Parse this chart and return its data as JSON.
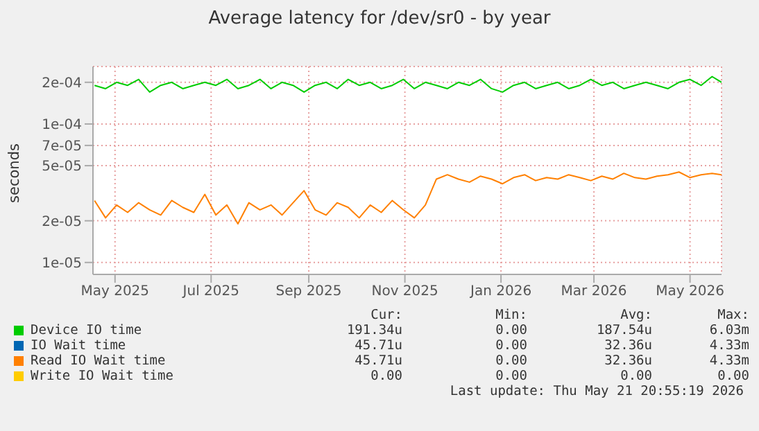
{
  "chart_data": {
    "type": "line",
    "title": "Average latency for /dev/sr0 - by year",
    "ylabel": "seconds",
    "x": [
      "2025-04-18",
      "2025-04-25",
      "2025-05-02",
      "2025-05-09",
      "2025-05-16",
      "2025-05-23",
      "2025-05-30",
      "2025-06-06",
      "2025-06-13",
      "2025-06-20",
      "2025-06-27",
      "2025-07-04",
      "2025-07-11",
      "2025-07-18",
      "2025-07-25",
      "2025-08-01",
      "2025-08-08",
      "2025-08-15",
      "2025-08-22",
      "2025-08-29",
      "2025-09-05",
      "2025-09-12",
      "2025-09-19",
      "2025-09-26",
      "2025-10-03",
      "2025-10-10",
      "2025-10-17",
      "2025-10-24",
      "2025-10-31",
      "2025-11-07",
      "2025-11-14",
      "2025-11-21",
      "2025-11-28",
      "2025-12-05",
      "2025-12-12",
      "2025-12-19",
      "2025-12-26",
      "2026-01-02",
      "2026-01-09",
      "2026-01-16",
      "2026-01-23",
      "2026-01-30",
      "2026-02-06",
      "2026-02-13",
      "2026-02-20",
      "2026-02-27",
      "2026-03-06",
      "2026-03-13",
      "2026-03-20",
      "2026-03-27",
      "2026-04-03",
      "2026-04-10",
      "2026-04-17",
      "2026-04-24",
      "2026-05-01",
      "2026-05-08",
      "2026-05-15",
      "2026-05-21"
    ],
    "series": [
      {
        "name": "Device IO time",
        "color": "#00cc00",
        "values": [
          0.00019,
          0.00018,
          0.0002,
          0.00019,
          0.00021,
          0.00017,
          0.00019,
          0.0002,
          0.00018,
          0.00019,
          0.0002,
          0.00019,
          0.00021,
          0.00018,
          0.00019,
          0.00021,
          0.00018,
          0.0002,
          0.00019,
          0.00017,
          0.00019,
          0.0002,
          0.00018,
          0.00021,
          0.00019,
          0.0002,
          0.00018,
          0.00019,
          0.00021,
          0.00018,
          0.0002,
          0.00019,
          0.00018,
          0.0002,
          0.00019,
          0.00021,
          0.00018,
          0.00017,
          0.00019,
          0.0002,
          0.00018,
          0.00019,
          0.0002,
          0.00018,
          0.00019,
          0.00021,
          0.00019,
          0.0002,
          0.00018,
          0.00019,
          0.0002,
          0.00019,
          0.00018,
          0.0002,
          0.00021,
          0.00019,
          0.00022,
          0.0002
        ]
      },
      {
        "name": "IO Wait time",
        "color": "#0066b3",
        "values": [
          null,
          null,
          null,
          null,
          null,
          null,
          null,
          null,
          null,
          null,
          null,
          null,
          null,
          null,
          null,
          null,
          null,
          null,
          null,
          null,
          null,
          null,
          null,
          null,
          null,
          null,
          null,
          null,
          null,
          null,
          null,
          null,
          null,
          null,
          null,
          null,
          null,
          null,
          null,
          null,
          null,
          null,
          null,
          null,
          null,
          null,
          null,
          null,
          null,
          null,
          null,
          null,
          null,
          null,
          null,
          null,
          null,
          null
        ]
      },
      {
        "name": "Read IO Wait time",
        "color": "#ff8000",
        "values": [
          2.8e-05,
          2.1e-05,
          2.6e-05,
          2.3e-05,
          2.7e-05,
          2.4e-05,
          2.2e-05,
          2.8e-05,
          2.5e-05,
          2.3e-05,
          3.1e-05,
          2.2e-05,
          2.6e-05,
          1.9e-05,
          2.7e-05,
          2.4e-05,
          2.6e-05,
          2.2e-05,
          2.7e-05,
          3.3e-05,
          2.4e-05,
          2.2e-05,
          2.7e-05,
          2.5e-05,
          2.1e-05,
          2.6e-05,
          2.3e-05,
          2.8e-05,
          2.4e-05,
          2.1e-05,
          2.6e-05,
          4e-05,
          4.3e-05,
          4e-05,
          3.8e-05,
          4.2e-05,
          4e-05,
          3.7e-05,
          4.1e-05,
          4.3e-05,
          3.9e-05,
          4.1e-05,
          4e-05,
          4.3e-05,
          4.1e-05,
          3.9e-05,
          4.2e-05,
          4e-05,
          4.4e-05,
          4.1e-05,
          4e-05,
          4.2e-05,
          4.3e-05,
          4.5e-05,
          4.1e-05,
          4.3e-05,
          4.4e-05,
          4.3e-05
        ]
      },
      {
        "name": "Write IO Wait time",
        "color": "#ffcc00",
        "values": [
          null,
          null,
          null,
          null,
          null,
          null,
          null,
          null,
          null,
          null,
          null,
          null,
          null,
          null,
          null,
          null,
          null,
          null,
          null,
          null,
          null,
          null,
          null,
          null,
          null,
          null,
          null,
          null,
          null,
          null,
          null,
          null,
          null,
          null,
          null,
          null,
          null,
          null,
          null,
          null,
          null,
          null,
          null,
          null,
          null,
          null,
          null,
          null,
          null,
          null,
          null,
          null,
          null,
          null,
          null,
          null,
          null,
          null
        ]
      }
    ],
    "log": true,
    "xlim": [
      "2025-04-17",
      "2026-05-21"
    ],
    "xticks": [
      {
        "value": "2025-05-01",
        "label": "May 2025"
      },
      {
        "value": "2025-07-01",
        "label": "Jul 2025"
      },
      {
        "value": "2025-09-01",
        "label": "Sep 2025"
      },
      {
        "value": "2025-11-01",
        "label": "Nov 2025"
      },
      {
        "value": "2026-01-01",
        "label": "Jan 2026"
      },
      {
        "value": "2026-03-01",
        "label": "Mar 2026"
      },
      {
        "value": "2026-05-01",
        "label": "May 2026"
      }
    ],
    "ylim": [
      8.2e-06,
      0.00026
    ],
    "yticks": [
      {
        "value": 1e-05,
        "label": "1e-05"
      },
      {
        "value": 2e-05,
        "label": "2e-05"
      },
      {
        "value": 5e-05,
        "label": "5e-05"
      },
      {
        "value": 7e-05,
        "label": "7e-05"
      },
      {
        "value": 0.0001,
        "label": "1e-04"
      },
      {
        "value": 0.0002,
        "label": "2e-04"
      }
    ],
    "grid": true,
    "legend": "bottom",
    "marker": "none",
    "line_style": "solid",
    "annotations": [
      "Cur:",
      "Min:",
      "Avg:",
      "Max:",
      "191.34u",
      "0.00",
      "187.54u",
      "6.03m",
      "45.71u",
      "0.00",
      "32.36u",
      "4.33m",
      "45.71u",
      "0.00",
      "32.36u",
      "4.33m",
      "0.00",
      "0.00",
      "0.00",
      "0.00",
      "Last update: Thu May 21 20:55:19 2026"
    ]
  }
}
